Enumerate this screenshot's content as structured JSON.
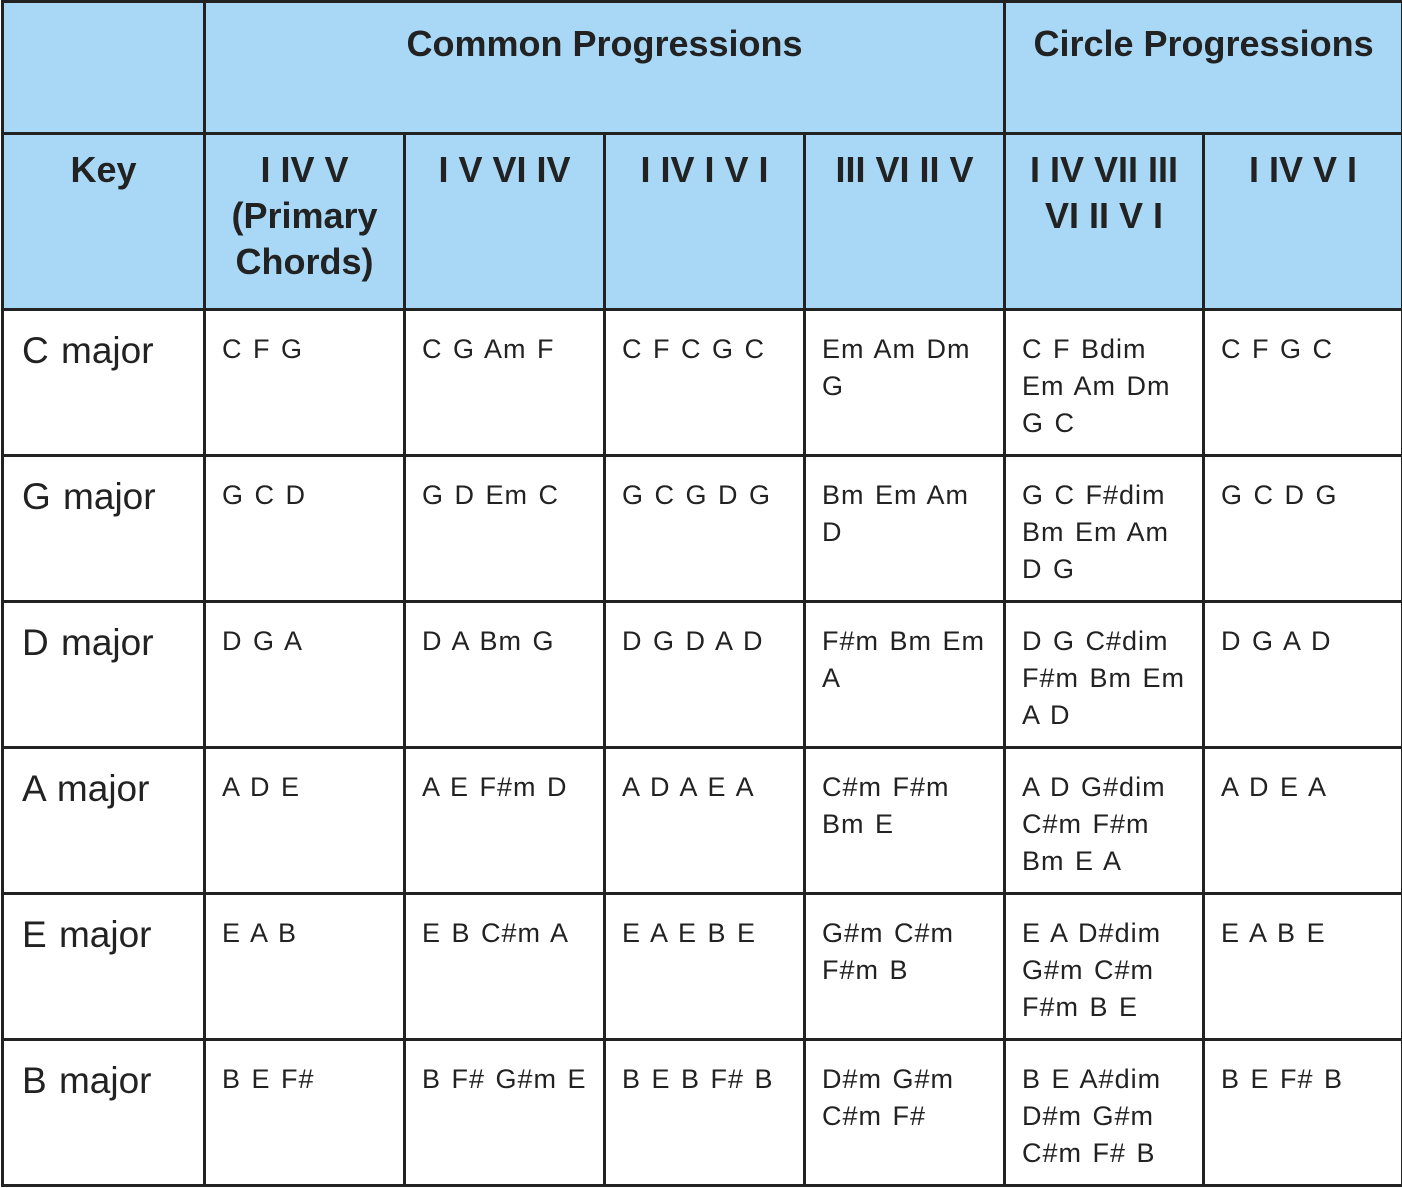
{
  "header": {
    "groups": [
      "Common Progressions",
      "Circle Progressions"
    ],
    "columns": [
      "Key",
      "I IV V (Primary Chords)",
      "I V VI IV",
      "I IV I V I",
      "III VI II V",
      "I IV VII III VI II V I",
      "I IV V I"
    ]
  },
  "table": {
    "rows": [
      [
        "C major",
        "C F G",
        "C G Am F",
        "C F C G C",
        "Em Am Dm G",
        "C F Bdim Em Am Dm G C",
        "C F G C"
      ],
      [
        "G major",
        "G C D",
        "G D Em C",
        "G C G D G",
        "Bm Em Am D",
        "G C F#dim Bm Em Am D G",
        "G C D G"
      ],
      [
        "D major",
        "D G A",
        "D A Bm G",
        "D G D A D",
        "F#m Bm Em A",
        "D G C#dim F#m Bm Em A D",
        "D G A D"
      ],
      [
        "A major",
        "A D E",
        "A E F#m D",
        "A D A E A",
        "C#m F#m Bm E",
        "A D G#dim C#m F#m Bm E A",
        "A D E A"
      ],
      [
        "E major",
        "E A B",
        "E B C#m A",
        "E A E B E",
        "G#m C#m F#m B",
        "E A D#dim G#m C#m F#m B E",
        "E A B E"
      ],
      [
        "B major",
        "B E F#",
        "B F# G#m E",
        "B E B F# B",
        "D#m G#m C#m F#",
        "B E A#dim D#m G#m C#m F# B",
        "B E F# B"
      ]
    ]
  }
}
